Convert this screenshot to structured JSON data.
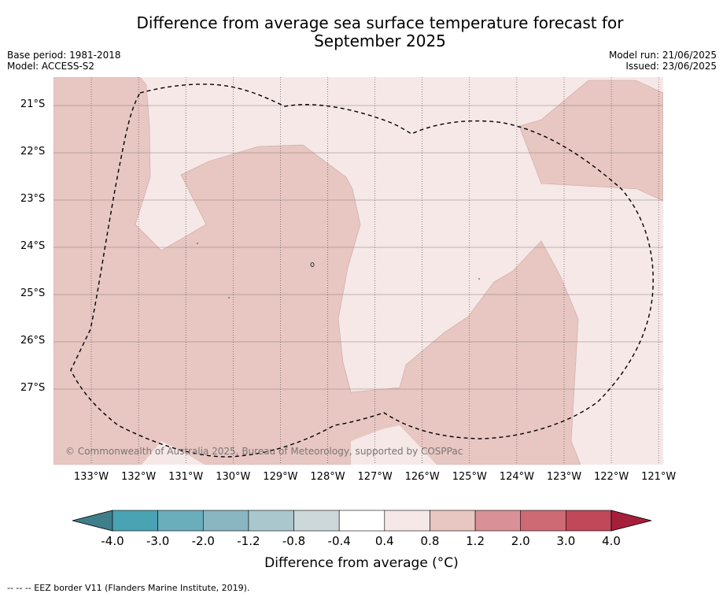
{
  "title_line1": "Difference from average sea surface temperature forecast for",
  "title_line2": "September 2025",
  "base_period": "Base period: 1981-2018",
  "model": "Model: ACCESS-S2",
  "model_run": "Model run: 21/06/2025",
  "issued": "Issued: 23/06/2025",
  "copyright": "© Commonwealth of Australia 2025, Bureau of Meteorology, supported by COSPPac",
  "lat_labels": [
    "21°S",
    "22°S",
    "23°S",
    "24°S",
    "25°S",
    "26°S",
    "27°S"
  ],
  "lon_labels": [
    "133°W",
    "132°W",
    "131°W",
    "130°W",
    "129°W",
    "128°W",
    "127°W",
    "126°W",
    "125°W",
    "124°W",
    "123°W",
    "122°W",
    "121°W"
  ],
  "colorbar": {
    "ticks": [
      "-4.0",
      "-3.0",
      "-2.0",
      "-1.2",
      "-0.8",
      "-0.4",
      "0.4",
      "0.8",
      "1.2",
      "2.0",
      "3.0",
      "4.0"
    ],
    "colors": [
      "#3f7f8b",
      "#4aa3b3",
      "#6aaebc",
      "#8ab6c2",
      "#a9c7cc",
      "#cdd8da",
      "#ffffff",
      "#f5e8e6",
      "#e8c6c1",
      "#d99097",
      "#cd6a74",
      "#c04858",
      "#a51f3b"
    ],
    "label": "Difference from average (°C)"
  },
  "map_colors": {
    "band_04_08": "#f5e8e6",
    "band_08_12": "#e8c6c1"
  },
  "footnote": "--  --  -- EEZ border V11 (Flanders Marine Institute, 2019)."
}
